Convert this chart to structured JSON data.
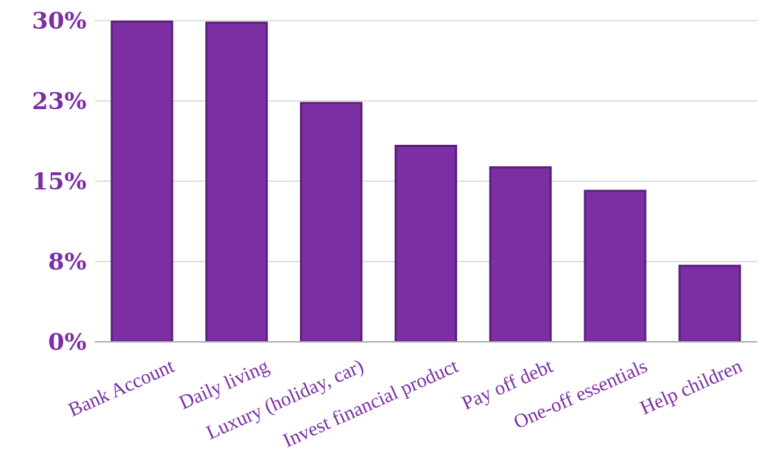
{
  "chart_data": {
    "type": "bar",
    "categories": [
      "Bank Account",
      "Daily living",
      "Luxury (holiday, car)",
      "Invest financial product",
      "Pay off debt",
      "One-off essentials",
      "Help children"
    ],
    "values": [
      29.9,
      29.8,
      22.3,
      18.3,
      16.3,
      14.1,
      7.1
    ],
    "color": "#7b2fa3",
    "ylim": [
      0,
      30
    ],
    "yticks": [
      {
        "value": 0,
        "label": "0%"
      },
      {
        "value": 7.5,
        "label": "8%"
      },
      {
        "value": 15,
        "label": "15%"
      },
      {
        "value": 22.5,
        "label": "23%"
      },
      {
        "value": 30,
        "label": "30%"
      }
    ],
    "grid": "y"
  }
}
